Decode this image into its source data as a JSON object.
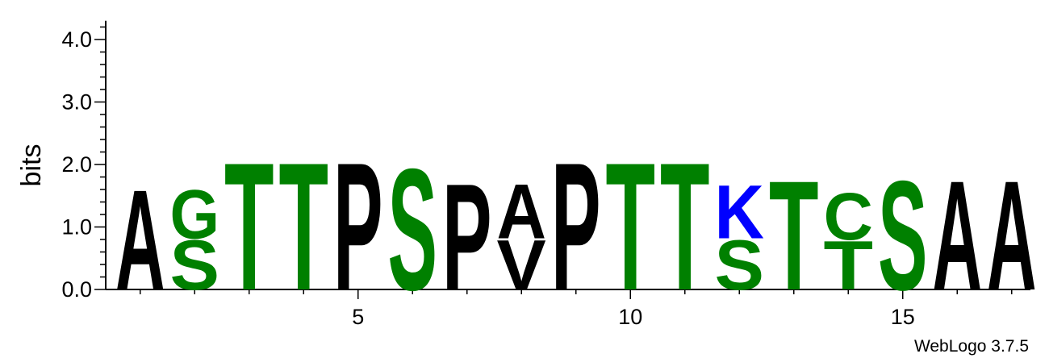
{
  "chart_data": {
    "type": "sequence-logo",
    "ylabel": "bits",
    "ylim": [
      0,
      4.3
    ],
    "yticks": [
      0,
      1,
      2,
      3,
      4
    ],
    "ytick_labels": [
      "0.0",
      "1.0",
      "2.0",
      "3.0",
      "4.0"
    ],
    "xlim": [
      0.5,
      17.5
    ],
    "xticks": [
      5,
      10,
      15
    ],
    "xtick_labels": [
      "5",
      "10",
      "15"
    ],
    "colors": {
      "hydrophobic": "#000000",
      "polar": "#008000",
      "basic": "#0000ff"
    },
    "positions": [
      {
        "pos": 1,
        "stack": [
          {
            "letter": "A",
            "bits": 1.65,
            "color": "#000000"
          }
        ]
      },
      {
        "pos": 2,
        "stack": [
          {
            "letter": "S",
            "bits": 0.82,
            "color": "#008000"
          },
          {
            "letter": "G",
            "bits": 0.8,
            "color": "#008000"
          }
        ]
      },
      {
        "pos": 3,
        "stack": [
          {
            "letter": "T",
            "bits": 2.1,
            "color": "#008000"
          }
        ]
      },
      {
        "pos": 4,
        "stack": [
          {
            "letter": "T",
            "bits": 2.1,
            "color": "#008000"
          }
        ]
      },
      {
        "pos": 5,
        "stack": [
          {
            "letter": "P",
            "bits": 2.1,
            "color": "#000000"
          }
        ]
      },
      {
        "pos": 6,
        "stack": [
          {
            "letter": "S",
            "bits": 2.0,
            "color": "#008000"
          }
        ]
      },
      {
        "pos": 7,
        "stack": [
          {
            "letter": "P",
            "bits": 1.75,
            "color": "#000000"
          }
        ]
      },
      {
        "pos": 8,
        "stack": [
          {
            "letter": "V",
            "bits": 0.82,
            "color": "#000000"
          },
          {
            "letter": "A",
            "bits": 0.9,
            "color": "#000000"
          }
        ]
      },
      {
        "pos": 9,
        "stack": [
          {
            "letter": "P",
            "bits": 2.1,
            "color": "#000000"
          }
        ]
      },
      {
        "pos": 10,
        "stack": [
          {
            "letter": "T",
            "bits": 2.1,
            "color": "#008000"
          }
        ]
      },
      {
        "pos": 11,
        "stack": [
          {
            "letter": "T",
            "bits": 2.1,
            "color": "#008000"
          }
        ]
      },
      {
        "pos": 12,
        "stack": [
          {
            "letter": "S",
            "bits": 0.82,
            "color": "#008000"
          },
          {
            "letter": "K",
            "bits": 0.88,
            "color": "#0000ff"
          }
        ]
      },
      {
        "pos": 13,
        "stack": [
          {
            "letter": "T",
            "bits": 1.8,
            "color": "#008000"
          }
        ]
      },
      {
        "pos": 14,
        "stack": [
          {
            "letter": "T",
            "bits": 0.8,
            "color": "#008000"
          },
          {
            "letter": "C",
            "bits": 0.78,
            "color": "#008000"
          }
        ]
      },
      {
        "pos": 15,
        "stack": [
          {
            "letter": "S",
            "bits": 1.8,
            "color": "#008000"
          }
        ]
      },
      {
        "pos": 16,
        "stack": [
          {
            "letter": "A",
            "bits": 1.8,
            "color": "#000000"
          }
        ]
      },
      {
        "pos": 17,
        "stack": [
          {
            "letter": "A",
            "bits": 1.8,
            "color": "#000000"
          }
        ]
      }
    ]
  },
  "footer": {
    "text": "WebLogo 3.7.5"
  }
}
